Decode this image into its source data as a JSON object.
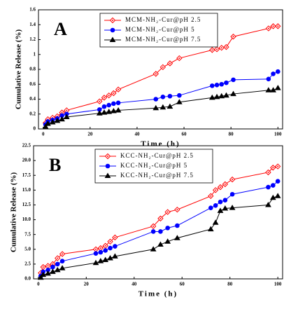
{
  "chart_data": [
    {
      "type": "line",
      "annotation": "A",
      "xlabel": "Time (h)",
      "ylabel": "Cumulative Release (%)",
      "x": [
        1,
        2,
        4,
        6,
        8,
        10,
        24,
        26,
        28,
        30,
        32,
        48,
        51,
        54,
        58,
        72,
        74,
        76,
        78,
        81,
        96,
        98,
        100
      ],
      "xlim": [
        -2,
        102
      ],
      "xticks": [
        0,
        20,
        40,
        60,
        80,
        100
      ],
      "ylim": [
        0,
        1.6
      ],
      "yticks": [
        0,
        0.2,
        0.4,
        0.6,
        0.8,
        1,
        1.2,
        1.4,
        1.6
      ],
      "legend": "upper-left",
      "series": [
        {
          "name": "MCM-NH₂-Cur@pH 2.5",
          "color": "#ff0000",
          "marker": "diamond",
          "values": [
            0.08,
            0.13,
            0.15,
            0.17,
            0.22,
            0.25,
            0.37,
            0.42,
            0.45,
            0.48,
            0.53,
            0.74,
            0.83,
            0.88,
            0.95,
            1.06,
            1.07,
            1.09,
            1.1,
            1.24,
            1.35,
            1.38,
            1.38
          ]
        },
        {
          "name": "MCM-NH₂-Cur@pH 5",
          "color": "#0000ff",
          "marker": "circle",
          "values": [
            0.06,
            0.1,
            0.12,
            0.14,
            0.18,
            0.2,
            0.26,
            0.3,
            0.32,
            0.34,
            0.35,
            0.4,
            0.43,
            0.44,
            0.45,
            0.58,
            0.59,
            0.6,
            0.62,
            0.66,
            0.67,
            0.74,
            0.77
          ]
        },
        {
          "name": "MCM-NH₂-Cur@pH 7.5",
          "color": "#000000",
          "marker": "triangle",
          "values": [
            0.03,
            0.07,
            0.09,
            0.11,
            0.13,
            0.16,
            0.21,
            0.22,
            0.23,
            0.24,
            0.25,
            0.28,
            0.29,
            0.3,
            0.36,
            0.42,
            0.43,
            0.44,
            0.45,
            0.47,
            0.52,
            0.52,
            0.55
          ]
        }
      ]
    },
    {
      "type": "line",
      "annotation": "B",
      "xlabel": "Time (h)",
      "ylabel": "Cumulative Release (%)",
      "x": [
        1,
        2,
        4,
        6,
        8,
        10,
        24,
        26,
        28,
        30,
        32,
        48,
        51,
        54,
        58,
        72,
        74,
        76,
        78,
        81,
        96,
        98,
        100
      ],
      "xlim": [
        -2,
        102
      ],
      "xticks": [
        0,
        20,
        40,
        60,
        80,
        100
      ],
      "ylim": [
        0,
        22.5
      ],
      "yticks": [
        {
          "value": 0,
          "label": "0.0"
        },
        2.5,
        {
          "value": 5,
          "label": "5.0"
        },
        7.5,
        {
          "value": 10,
          "label": "10.0"
        },
        12.5,
        {
          "value": 15,
          "label": "15.0"
        },
        17.5,
        {
          "value": 20,
          "label": "20.0"
        },
        22.5
      ],
      "legend": "upper-left",
      "series": [
        {
          "name": "KCC-NH₂-Cur@pH 2.5",
          "color": "#ff0000",
          "marker": "diamond",
          "values": [
            1,
            2,
            2.2,
            2.5,
            3.5,
            4.2,
            5,
            5.2,
            5.6,
            6.3,
            7,
            8.9,
            10.2,
            11.3,
            11.7,
            14,
            15,
            15.5,
            16,
            16.8,
            18,
            18.8,
            19
          ]
        },
        {
          "name": "KCC-NH₂-Cur@pH 5",
          "color": "#0000ff",
          "marker": "circle",
          "values": [
            0.5,
            1.2,
            1.5,
            2,
            2.5,
            3,
            4.3,
            4.5,
            4.8,
            5.2,
            5.5,
            8,
            8,
            8.6,
            9,
            12,
            12.4,
            13,
            13.3,
            14.3,
            15.5,
            15.8,
            16.5
          ]
        },
        {
          "name": "KCC-NH₂-Cur@pH 7.5",
          "color": "#000000",
          "marker": "triangle",
          "values": [
            0.2,
            0.7,
            0.9,
            1.2,
            1.5,
            1.8,
            2.7,
            3,
            3.2,
            3.5,
            3.8,
            5,
            5.8,
            6.3,
            6.9,
            8.4,
            9.5,
            11.5,
            11.9,
            12,
            12.5,
            13.7,
            14
          ]
        }
      ]
    }
  ]
}
